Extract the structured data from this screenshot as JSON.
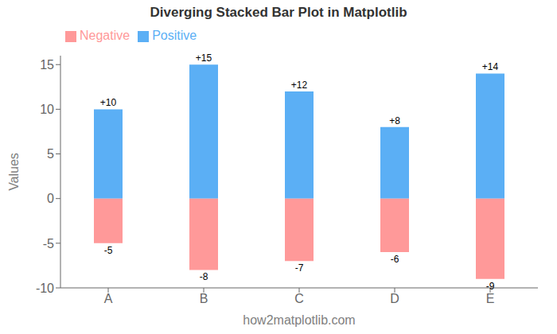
{
  "chart_data": {
    "type": "bar",
    "title": "Diverging Stacked Bar Plot in Matplotlib",
    "xlabel": "how2matplotlib.com",
    "ylabel": "Values",
    "categories": [
      "A",
      "B",
      "C",
      "D",
      "E"
    ],
    "series": [
      {
        "name": "Positive",
        "color": "#5BAFF5",
        "values": [
          10,
          15,
          12,
          8,
          14
        ],
        "value_labels": [
          "+10",
          "+15",
          "+12",
          "+8",
          "+14"
        ]
      },
      {
        "name": "Negative",
        "color": "#FF9999",
        "values": [
          -5,
          -8,
          -7,
          -6,
          -9
        ]
      }
    ],
    "ylim": [
      -10,
      16
    ],
    "yticks": [
      -10,
      -5,
      0,
      5,
      10,
      15
    ],
    "stacked": true,
    "data_labels": true,
    "legend": "upper left",
    "grid": false
  }
}
